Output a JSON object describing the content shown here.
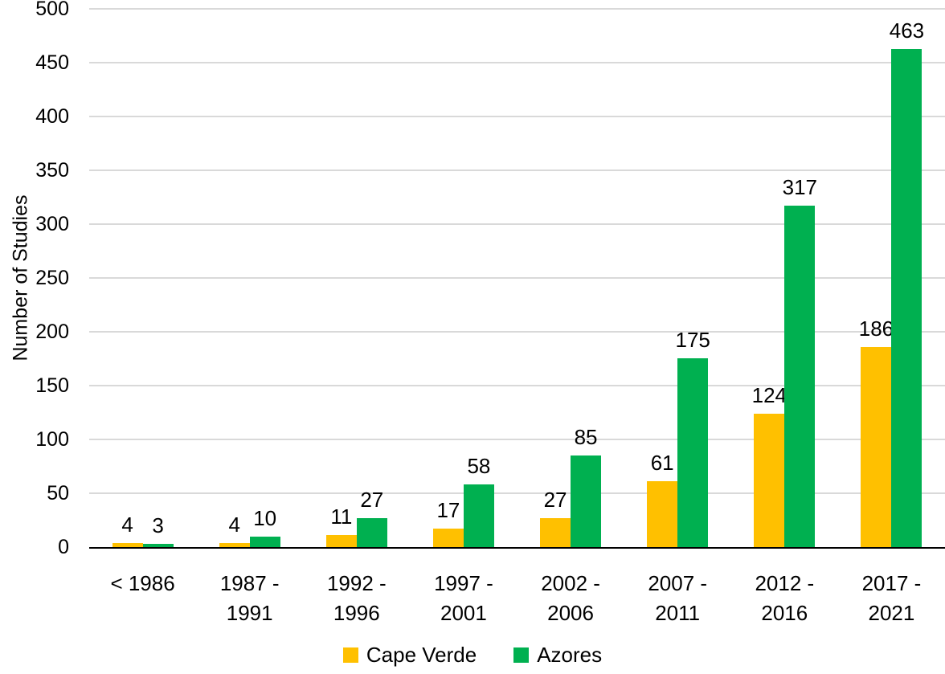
{
  "chart_data": {
    "type": "bar",
    "title": "",
    "xlabel": "",
    "ylabel": "Number of Studies",
    "ylim": [
      0,
      500
    ],
    "ytick_step": 50,
    "yticks": [
      0,
      50,
      100,
      150,
      200,
      250,
      300,
      350,
      400,
      450,
      500
    ],
    "grid": true,
    "legend_position": "bottom",
    "categories": [
      "< 1986",
      "1987 -\n1991",
      "1992 -\n1996",
      "1997 -\n2001",
      "2002 -\n2006",
      "2007 -\n2011",
      "2012 -\n2016",
      "2017 -\n2021"
    ],
    "series": [
      {
        "name": "Cape Verde",
        "color": "#FFC000",
        "values": [
          4,
          4,
          11,
          17,
          27,
          61,
          124,
          186
        ]
      },
      {
        "name": "Azores",
        "color": "#00B050",
        "values": [
          3,
          10,
          27,
          58,
          85,
          175,
          317,
          463
        ]
      }
    ]
  },
  "colors": {
    "background": "#FFFFFF",
    "gridline": "#D9D9D9",
    "axis": "#000000",
    "text": "#000000",
    "cape_verde": "#FFC000",
    "azores": "#00B050"
  }
}
